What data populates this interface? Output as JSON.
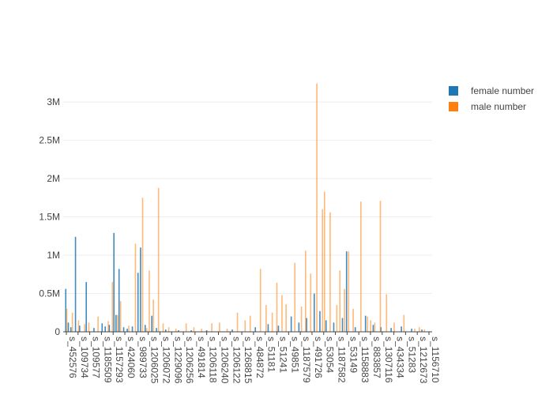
{
  "chart_data": {
    "type": "bar",
    "barmode": "overlay",
    "grid": true,
    "legend_position": "top-right",
    "ylim": [
      0,
      3300000
    ],
    "y_ticks": [
      {
        "value": 0,
        "label": "0"
      },
      {
        "value": 500000,
        "label": "0.5M"
      },
      {
        "value": 1000000,
        "label": "1M"
      },
      {
        "value": 1500000,
        "label": "1.5M"
      },
      {
        "value": 2000000,
        "label": "2M"
      },
      {
        "value": 2500000,
        "label": "2.5M"
      },
      {
        "value": 3000000,
        "label": "3M"
      }
    ],
    "x_tick_labels": [
      "s_452576",
      "s_109734",
      "s_109577",
      "s_1185509",
      "s_1157293",
      "s_424060",
      "s_989733",
      "s_1206025",
      "s_1206072",
      "s_1229096",
      "s_1206256",
      "s_491814",
      "s_1206118",
      "s_1206240",
      "s_1206122",
      "s_1268815",
      "s_484872",
      "s_51181",
      "s_51241",
      "s_49851",
      "s_1187579",
      "s_491726",
      "s_53054",
      "s_1187582",
      "s_53149",
      "s_1158883",
      "s_883857",
      "s_1307116",
      "s_434334",
      "s_51283",
      "s_1212673",
      "s_1156710"
    ],
    "series": [
      {
        "name": "female number",
        "color": "#1f77b4",
        "points": [
          {
            "x": 0.5,
            "value": 560000
          },
          {
            "x": 1.0,
            "value": 120000
          },
          {
            "x": 1.5,
            "value": 60000
          },
          {
            "x": 2.4,
            "value": 1240000
          },
          {
            "x": 3.2,
            "value": 80000
          },
          {
            "x": 4.5,
            "value": 650000
          },
          {
            "x": 6.0,
            "value": 50000
          },
          {
            "x": 7.6,
            "value": 110000
          },
          {
            "x": 8.2,
            "value": 70000
          },
          {
            "x": 9.0,
            "value": 90000
          },
          {
            "x": 9.9,
            "value": 1290000
          },
          {
            "x": 10.3,
            "value": 220000
          },
          {
            "x": 10.9,
            "value": 820000
          },
          {
            "x": 11.8,
            "value": 60000
          },
          {
            "x": 12.5,
            "value": 40000
          },
          {
            "x": 13.5,
            "value": 70000
          },
          {
            "x": 14.6,
            "value": 770000
          },
          {
            "x": 15.1,
            "value": 1100000
          },
          {
            "x": 16.0,
            "value": 90000
          },
          {
            "x": 17.3,
            "value": 210000
          },
          {
            "x": 18.2,
            "value": 50000
          },
          {
            "x": 20.0,
            "value": 30000
          },
          {
            "x": 22.5,
            "value": 20000
          },
          {
            "x": 25.0,
            "value": 20000
          },
          {
            "x": 28.0,
            "value": 20000
          },
          {
            "x": 33.0,
            "value": 30000
          },
          {
            "x": 37.5,
            "value": 60000
          },
          {
            "x": 40.0,
            "value": 100000
          },
          {
            "x": 42.0,
            "value": 80000
          },
          {
            "x": 44.5,
            "value": 200000
          },
          {
            "x": 46.0,
            "value": 120000
          },
          {
            "x": 47.5,
            "value": 180000
          },
          {
            "x": 49.0,
            "value": 500000
          },
          {
            "x": 50.1,
            "value": 270000
          },
          {
            "x": 51.3,
            "value": 150000
          },
          {
            "x": 52.8,
            "value": 120000
          },
          {
            "x": 54.5,
            "value": 180000
          },
          {
            "x": 55.3,
            "value": 1050000
          },
          {
            "x": 57.0,
            "value": 60000
          },
          {
            "x": 59.0,
            "value": 210000
          },
          {
            "x": 60.5,
            "value": 90000
          },
          {
            "x": 62.0,
            "value": 60000
          },
          {
            "x": 64.0,
            "value": 50000
          },
          {
            "x": 66.0,
            "value": 70000
          },
          {
            "x": 68.0,
            "value": 40000
          },
          {
            "x": 70.0,
            "value": 30000
          }
        ]
      },
      {
        "name": "male number",
        "color": "#ff7f0e",
        "points": [
          {
            "x": 0.7,
            "value": 300000
          },
          {
            "x": 1.8,
            "value": 250000
          },
          {
            "x": 3.0,
            "value": 150000
          },
          {
            "x": 4.2,
            "value": 100000
          },
          {
            "x": 5.0,
            "value": 120000
          },
          {
            "x": 6.8,
            "value": 200000
          },
          {
            "x": 8.8,
            "value": 140000
          },
          {
            "x": 9.6,
            "value": 650000
          },
          {
            "x": 10.6,
            "value": 220000
          },
          {
            "x": 11.2,
            "value": 400000
          },
          {
            "x": 12.8,
            "value": 80000
          },
          {
            "x": 14.1,
            "value": 1150000
          },
          {
            "x": 15.5,
            "value": 1750000
          },
          {
            "x": 16.3,
            "value": 50000
          },
          {
            "x": 16.8,
            "value": 800000
          },
          {
            "x": 17.6,
            "value": 420000
          },
          {
            "x": 18.6,
            "value": 1880000
          },
          {
            "x": 19.5,
            "value": 110000
          },
          {
            "x": 20.6,
            "value": 60000
          },
          {
            "x": 22.0,
            "value": 40000
          },
          {
            "x": 24.0,
            "value": 110000
          },
          {
            "x": 25.5,
            "value": 60000
          },
          {
            "x": 27.0,
            "value": 40000
          },
          {
            "x": 29.0,
            "value": 110000
          },
          {
            "x": 30.5,
            "value": 120000
          },
          {
            "x": 32.0,
            "value": 40000
          },
          {
            "x": 34.0,
            "value": 250000
          },
          {
            "x": 35.5,
            "value": 150000
          },
          {
            "x": 36.5,
            "value": 210000
          },
          {
            "x": 38.5,
            "value": 820000
          },
          {
            "x": 39.6,
            "value": 350000
          },
          {
            "x": 40.8,
            "value": 250000
          },
          {
            "x": 41.7,
            "value": 640000
          },
          {
            "x": 42.7,
            "value": 480000
          },
          {
            "x": 43.5,
            "value": 360000
          },
          {
            "x": 45.2,
            "value": 900000
          },
          {
            "x": 46.5,
            "value": 330000
          },
          {
            "x": 47.3,
            "value": 1060000
          },
          {
            "x": 48.3,
            "value": 760000
          },
          {
            "x": 49.5,
            "value": 3240000
          },
          {
            "x": 50.6,
            "value": 1600000
          },
          {
            "x": 51.0,
            "value": 1830000
          },
          {
            "x": 52.1,
            "value": 1560000
          },
          {
            "x": 53.4,
            "value": 350000
          },
          {
            "x": 54.0,
            "value": 800000
          },
          {
            "x": 54.9,
            "value": 560000
          },
          {
            "x": 55.7,
            "value": 1050000
          },
          {
            "x": 56.6,
            "value": 300000
          },
          {
            "x": 58.1,
            "value": 1700000
          },
          {
            "x": 59.4,
            "value": 200000
          },
          {
            "x": 60.0,
            "value": 150000
          },
          {
            "x": 60.8,
            "value": 120000
          },
          {
            "x": 61.9,
            "value": 1710000
          },
          {
            "x": 63.1,
            "value": 490000
          },
          {
            "x": 64.6,
            "value": 120000
          },
          {
            "x": 66.5,
            "value": 220000
          },
          {
            "x": 68.6,
            "value": 40000
          },
          {
            "x": 69.5,
            "value": 60000
          },
          {
            "x": 70.5,
            "value": 30000
          }
        ]
      }
    ]
  }
}
